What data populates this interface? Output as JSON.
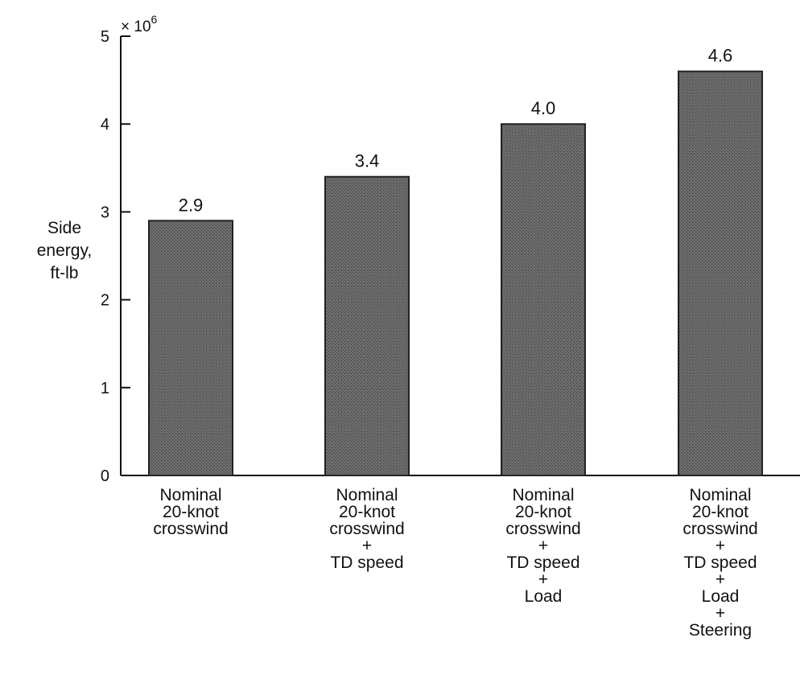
{
  "chart_data": {
    "type": "bar",
    "ylabel": [
      "Side",
      "energy,",
      "ft-lb"
    ],
    "y_multiplier": {
      "base": "× 10",
      "exponent": "6"
    },
    "ylim": [
      0,
      5
    ],
    "y_ticks": [
      0,
      1,
      2,
      3,
      4,
      5
    ],
    "categories": [
      [
        "Nominal",
        "20-knot",
        "crosswind"
      ],
      [
        "Nominal",
        "20-knot",
        "crosswind",
        "+",
        "TD speed"
      ],
      [
        "Nominal",
        "20-knot",
        "crosswind",
        "+",
        "TD speed",
        "+",
        "Load"
      ],
      [
        "Nominal",
        "20-knot",
        "crosswind",
        "+",
        "TD speed",
        "+",
        "Load",
        "+",
        "Steering"
      ]
    ],
    "values": [
      2.9,
      3.4,
      4.0,
      4.6
    ],
    "value_labels": [
      "2.9",
      "3.4",
      "4.0",
      "4.6"
    ],
    "grid": false,
    "bar_color": "#5a5a5a"
  }
}
